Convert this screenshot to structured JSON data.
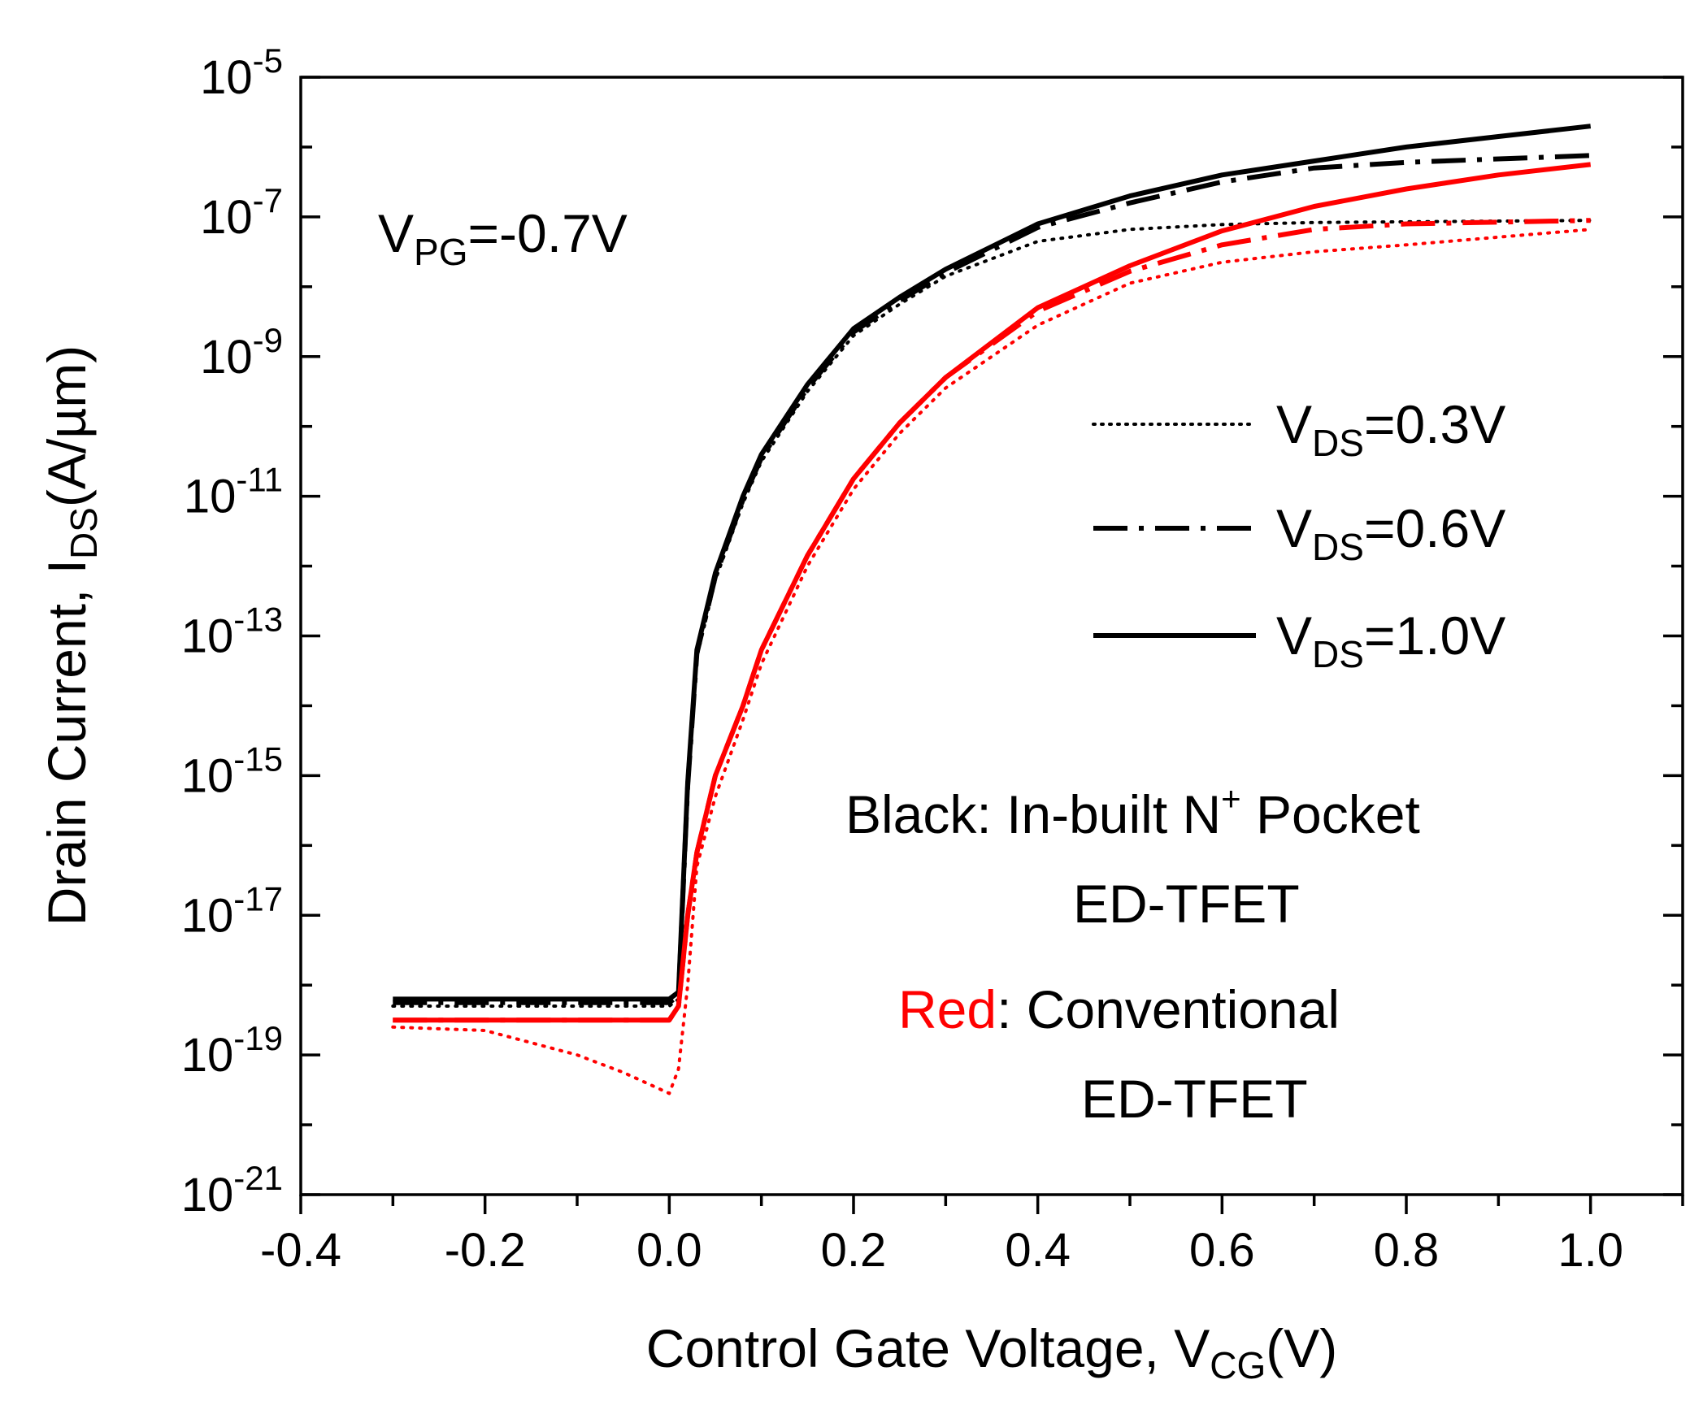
{
  "chart_data": {
    "type": "line",
    "title": "",
    "xlabel": {
      "main": "Control Gate Voltage, V",
      "sub": "CG",
      "suffix": "(V)"
    },
    "ylabel": {
      "main": "Drain Current, I",
      "sub": "DS",
      "suffix": "(A/µm)"
    },
    "xlim": [
      -0.4,
      1.1
    ],
    "ylim_exp": [
      -21,
      -5
    ],
    "xticks": [
      {
        "v": -0.4,
        "label": "-0.4"
      },
      {
        "v": -0.2,
        "label": "-0.2"
      },
      {
        "v": 0.0,
        "label": "0.0"
      },
      {
        "v": 0.2,
        "label": "0.2"
      },
      {
        "v": 0.4,
        "label": "0.4"
      },
      {
        "v": 0.6,
        "label": "0.6"
      },
      {
        "v": 0.8,
        "label": "0.8"
      },
      {
        "v": 1.0,
        "label": "1.0"
      }
    ],
    "yticks": [
      {
        "exp": -5,
        "base": "10",
        "sup": "-5"
      },
      {
        "exp": -7,
        "base": "10",
        "sup": "-7"
      },
      {
        "exp": -9,
        "base": "10",
        "sup": "-9"
      },
      {
        "exp": -11,
        "base": "10",
        "sup": "-11"
      },
      {
        "exp": -13,
        "base": "10",
        "sup": "-13"
      },
      {
        "exp": -15,
        "base": "10",
        "sup": "-15"
      },
      {
        "exp": -17,
        "base": "10",
        "sup": "-17"
      },
      {
        "exp": -19,
        "base": "10",
        "sup": "-19"
      },
      {
        "exp": -21,
        "base": "10",
        "sup": "-21"
      }
    ],
    "series": [
      {
        "name": "In-built N+ Pocket ED-TFET, VDS=0.3V",
        "color": "#000000",
        "style": "dotted",
        "x": [
          -0.3,
          0.0,
          0.01,
          0.02,
          0.03,
          0.05,
          0.08,
          0.1,
          0.15,
          0.2,
          0.25,
          0.3,
          0.4,
          0.5,
          0.6,
          0.7,
          0.8,
          1.0
        ],
        "log10_y": [
          -18.3,
          -18.3,
          -18.2,
          -15.2,
          -13.3,
          -12.2,
          -11.1,
          -10.5,
          -9.5,
          -8.7,
          -8.25,
          -7.85,
          -7.35,
          -7.18,
          -7.11,
          -7.08,
          -7.07,
          -7.05
        ]
      },
      {
        "name": "In-built N+ Pocket ED-TFET, VDS=0.6V",
        "color": "#000000",
        "style": "dashdot",
        "x": [
          -0.3,
          0.0,
          0.01,
          0.02,
          0.03,
          0.05,
          0.08,
          0.1,
          0.15,
          0.2,
          0.25,
          0.3,
          0.4,
          0.5,
          0.6,
          0.7,
          0.8,
          1.0
        ],
        "log10_y": [
          -18.25,
          -18.25,
          -18.15,
          -15.15,
          -13.25,
          -12.15,
          -11.05,
          -10.45,
          -9.45,
          -8.65,
          -8.2,
          -7.8,
          -7.15,
          -6.8,
          -6.5,
          -6.3,
          -6.22,
          -6.12
        ]
      },
      {
        "name": "In-built N+ Pocket ED-TFET, VDS=1.0V",
        "color": "#000000",
        "style": "solid",
        "x": [
          -0.3,
          0.0,
          0.01,
          0.02,
          0.03,
          0.05,
          0.08,
          0.1,
          0.15,
          0.2,
          0.25,
          0.3,
          0.4,
          0.5,
          0.6,
          0.7,
          0.8,
          0.9,
          1.0
        ],
        "log10_y": [
          -18.2,
          -18.2,
          -18.1,
          -15.1,
          -13.2,
          -12.1,
          -11.0,
          -10.4,
          -9.4,
          -8.6,
          -8.15,
          -7.75,
          -7.1,
          -6.7,
          -6.4,
          -6.2,
          -6.0,
          -5.85,
          -5.7
        ]
      },
      {
        "name": "Conventional ED-TFET, VDS=0.3V",
        "color": "#ff0000",
        "style": "dotted",
        "x": [
          -0.3,
          -0.2,
          -0.1,
          -0.05,
          0.0,
          0.01,
          0.02,
          0.03,
          0.05,
          0.08,
          0.1,
          0.15,
          0.2,
          0.25,
          0.3,
          0.4,
          0.5,
          0.6,
          0.7,
          0.8,
          1.0
        ],
        "log10_y": [
          -18.6,
          -18.65,
          -19.0,
          -19.25,
          -19.55,
          -19.2,
          -18.0,
          -16.3,
          -15.3,
          -14.2,
          -13.4,
          -12.0,
          -10.9,
          -10.1,
          -9.45,
          -8.55,
          -7.95,
          -7.65,
          -7.5,
          -7.4,
          -7.18
        ]
      },
      {
        "name": "Conventional ED-TFET, VDS=0.6V",
        "color": "#ff0000",
        "style": "dashdot",
        "x": [
          -0.3,
          0.0,
          0.01,
          0.02,
          0.03,
          0.05,
          0.08,
          0.1,
          0.15,
          0.2,
          0.25,
          0.3,
          0.4,
          0.5,
          0.6,
          0.7,
          0.8,
          1.0
        ],
        "log10_y": [
          -18.5,
          -18.5,
          -18.3,
          -17.0,
          -16.1,
          -15.0,
          -14.0,
          -13.2,
          -11.85,
          -10.75,
          -9.95,
          -9.3,
          -8.35,
          -7.78,
          -7.4,
          -7.18,
          -7.1,
          -7.05
        ]
      },
      {
        "name": "Conventional ED-TFET, VDS=1.0V",
        "color": "#ff0000",
        "style": "solid",
        "x": [
          -0.3,
          0.0,
          0.01,
          0.02,
          0.03,
          0.05,
          0.08,
          0.1,
          0.15,
          0.2,
          0.25,
          0.3,
          0.4,
          0.5,
          0.6,
          0.7,
          0.8,
          0.9,
          1.0
        ],
        "log10_y": [
          -18.5,
          -18.5,
          -18.3,
          -17.0,
          -16.1,
          -15.0,
          -14.0,
          -13.2,
          -11.85,
          -10.75,
          -9.95,
          -9.3,
          -8.3,
          -7.7,
          -7.2,
          -6.85,
          -6.6,
          -6.4,
          -6.25
        ]
      }
    ],
    "legend": {
      "position": "right",
      "entries": [
        {
          "style": "dotted",
          "base": "V",
          "sub": "DS",
          "suffix": "=0.3V"
        },
        {
          "style": "dashdot",
          "base": "V",
          "sub": "DS",
          "suffix": "=0.6V"
        },
        {
          "style": "solid",
          "base": "V",
          "sub": "DS",
          "suffix": "=1.0V"
        }
      ]
    },
    "annotations": {
      "vpg": {
        "base": "V",
        "sub": "PG",
        "suffix": "=-0.7V"
      },
      "black_desc": {
        "lead": "Black",
        "rest": ": In-built N",
        "sup": "+",
        "tail": " Pocket",
        "line2": "ED-TFET"
      },
      "red_desc": {
        "lead": "Red",
        "rest": ": Conventional",
        "line2": "ED-TFET"
      }
    },
    "colors": {
      "black": "#000000",
      "red": "#ff0000"
    }
  }
}
